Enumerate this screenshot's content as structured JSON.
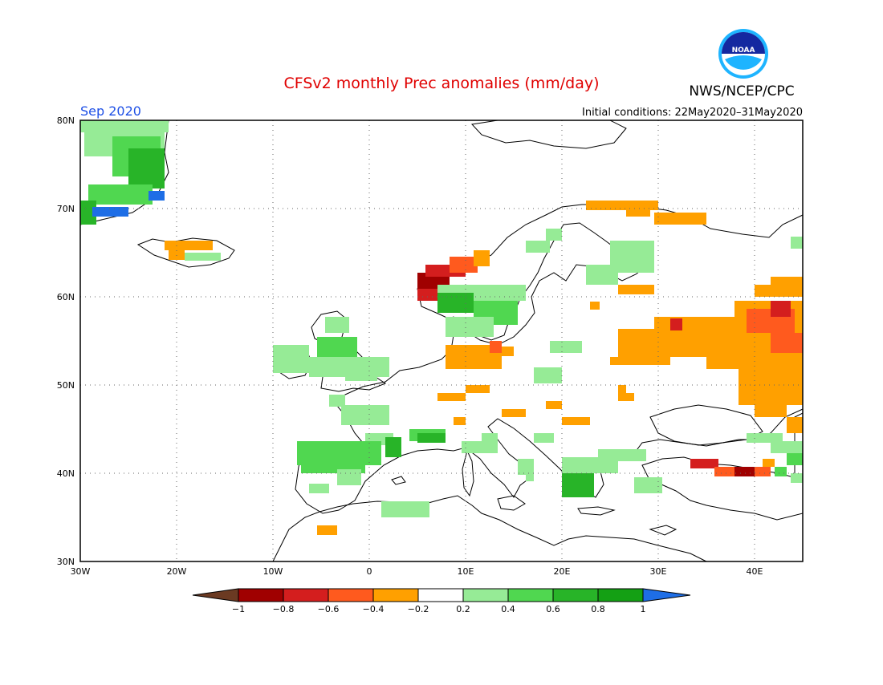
{
  "title": "CFSv2 monthly Prec anomalies (mm/day)",
  "org_label": "NWS/NCEP/CPC",
  "logo_text": "NOAA",
  "month_label": "Sep 2020",
  "initial_conditions": "Initial conditions: 22May2020–31May2020",
  "map": {
    "lon_ticks": [
      "30W",
      "20W",
      "10W",
      "0",
      "10E",
      "20E",
      "30E",
      "40E"
    ],
    "lat_ticks": [
      "80N",
      "70N",
      "60N",
      "50N",
      "40N",
      "30N"
    ]
  },
  "colorbar": {
    "ticks": [
      "−1",
      "−0.8",
      "−0.6",
      "−0.4",
      "−0.2",
      "0.2",
      "0.4",
      "0.6",
      "0.8",
      "1"
    ],
    "colors": [
      "#6b3a22",
      "#a00000",
      "#d41e1e",
      "#ff5a1e",
      "#ffa000",
      "#ffffff",
      "#96eb96",
      "#50d750",
      "#28b428",
      "#14a014",
      "#1e6ee6"
    ]
  }
}
